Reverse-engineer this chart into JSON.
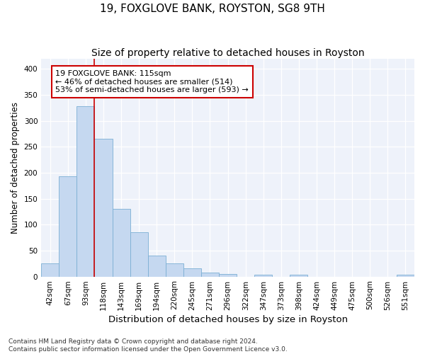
{
  "title": "19, FOXGLOVE BANK, ROYSTON, SG8 9TH",
  "subtitle": "Size of property relative to detached houses in Royston",
  "xlabel": "Distribution of detached houses by size in Royston",
  "ylabel": "Number of detached properties",
  "bar_labels": [
    "42sqm",
    "67sqm",
    "93sqm",
    "118sqm",
    "143sqm",
    "169sqm",
    "194sqm",
    "220sqm",
    "245sqm",
    "271sqm",
    "296sqm",
    "322sqm",
    "347sqm",
    "373sqm",
    "398sqm",
    "424sqm",
    "449sqm",
    "475sqm",
    "500sqm",
    "526sqm",
    "551sqm"
  ],
  "bar_values": [
    26,
    193,
    328,
    265,
    130,
    86,
    40,
    26,
    16,
    7,
    5,
    0,
    4,
    0,
    3,
    0,
    0,
    0,
    0,
    0,
    3
  ],
  "bar_color": "#c5d8f0",
  "bar_edge_color": "#7bafd4",
  "property_line_x": 2.5,
  "annotation_line1": "19 FOXGLOVE BANK: 115sqm",
  "annotation_line2": "← 46% of detached houses are smaller (514)",
  "annotation_line3": "53% of semi-detached houses are larger (593) →",
  "annotation_box_color": "#ffffff",
  "annotation_box_edge": "#cc0000",
  "vline_color": "#cc0000",
  "ylim": [
    0,
    420
  ],
  "yticks": [
    0,
    50,
    100,
    150,
    200,
    250,
    300,
    350,
    400
  ],
  "background_color": "#eef2fa",
  "footnote_line1": "Contains HM Land Registry data © Crown copyright and database right 2024.",
  "footnote_line2": "Contains public sector information licensed under the Open Government Licence v3.0.",
  "title_fontsize": 11,
  "subtitle_fontsize": 10,
  "xlabel_fontsize": 9.5,
  "ylabel_fontsize": 8.5,
  "tick_fontsize": 7.5,
  "annotation_fontsize": 8,
  "footnote_fontsize": 6.5
}
